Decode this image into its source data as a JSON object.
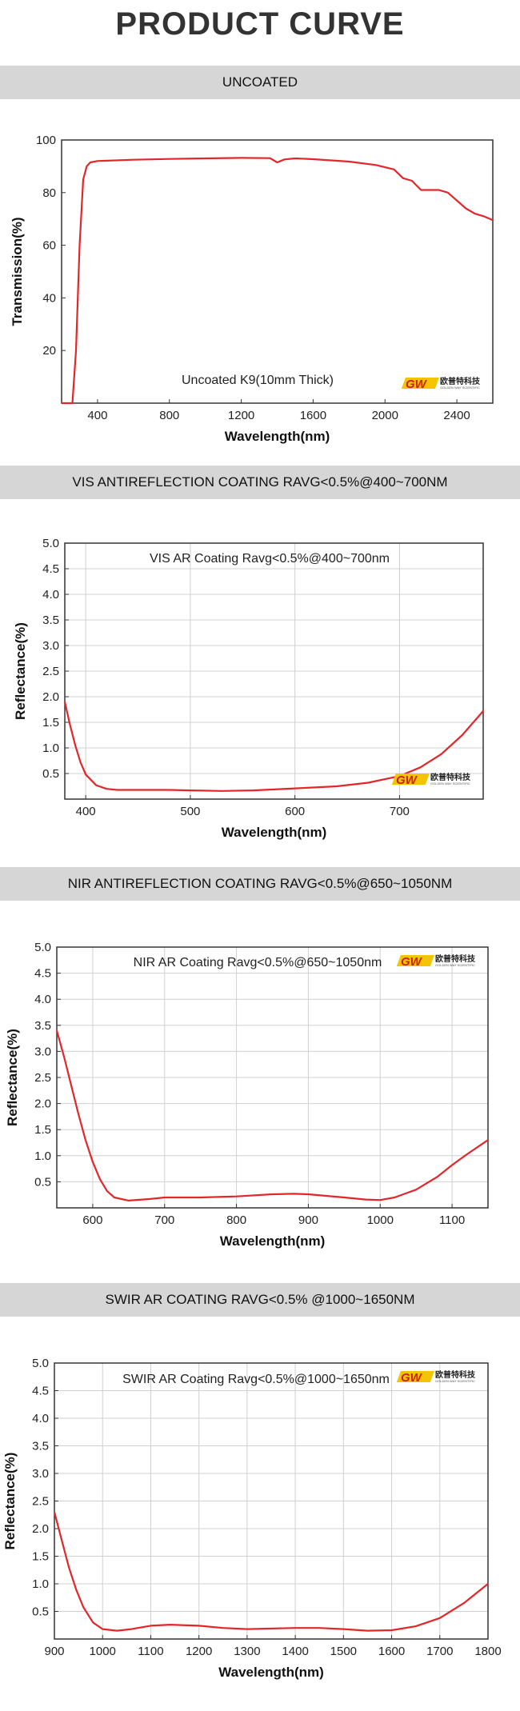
{
  "page": {
    "title": "PRODUCT CURVE"
  },
  "logo": {
    "mark": "GW",
    "chinese": "欧普特科技",
    "sub": "GOLDEN WAY SCIENTIFIC",
    "mark_color": "#cc1f1f",
    "bar_color": "#f5c400"
  },
  "colors": {
    "curve": "#e3262a",
    "grid": "#d0d0d0",
    "frame": "#333333",
    "bar": "#d6d6d6"
  },
  "sections": [
    {
      "label": "UNCOATED"
    },
    {
      "label": "VIS ANTIREFLECTION COATING RAVG<0.5%@400~700NM"
    },
    {
      "label": "NIR ANTIREFLECTION COATING RAVG<0.5%@650~1050NM"
    },
    {
      "label": "SWIR AR COATING RAVG<0.5% @1000~1650NM"
    }
  ],
  "chart_data": [
    {
      "type": "line",
      "annotation": "Uncoated K9(10mm Thick)",
      "xlabel": "Wavelength(nm)",
      "ylabel": "Transmission(%)",
      "xlim": [
        200,
        2600
      ],
      "ylim": [
        0,
        100
      ],
      "x_ticks": [
        400,
        800,
        1200,
        1600,
        2000,
        2400
      ],
      "y_ticks": [
        20,
        40,
        60,
        80,
        100
      ],
      "grid": false,
      "series": [
        {
          "x": [
            200,
            260,
            280,
            300,
            320,
            340,
            360,
            400,
            600,
            800,
            1000,
            1200,
            1360,
            1400,
            1440,
            1500,
            1600,
            1800,
            1950,
            2050,
            2100,
            2150,
            2200,
            2250,
            2300,
            2350,
            2400,
            2450,
            2500,
            2550,
            2600
          ],
          "y": [
            0,
            0,
            20,
            60,
            85,
            90,
            91.5,
            92,
            92.5,
            92.8,
            93,
            93.2,
            93.1,
            91.5,
            92.6,
            93,
            92.7,
            91.8,
            90.5,
            88.8,
            85.5,
            84.5,
            81,
            81,
            81,
            80,
            77,
            74,
            72,
            71,
            69.5
          ]
        }
      ]
    },
    {
      "type": "line",
      "annotation": "VIS AR Coating Ravg<0.5%@400~700nm",
      "xlabel": "Wavelength(nm)",
      "ylabel": "Reflectance(%)",
      "xlim": [
        380,
        780
      ],
      "ylim": [
        0,
        5
      ],
      "x_ticks": [
        400,
        500,
        600,
        700
      ],
      "y_ticks": [
        0.5,
        1.0,
        1.5,
        2.0,
        2.5,
        3.0,
        3.5,
        4.0,
        4.5,
        5.0
      ],
      "grid": true,
      "series": [
        {
          "x": [
            380,
            385,
            390,
            395,
            400,
            410,
            420,
            430,
            450,
            480,
            500,
            530,
            560,
            600,
            640,
            670,
            700,
            720,
            740,
            760,
            780
          ],
          "y": [
            1.9,
            1.45,
            1.05,
            0.72,
            0.48,
            0.27,
            0.2,
            0.18,
            0.18,
            0.18,
            0.17,
            0.16,
            0.17,
            0.21,
            0.25,
            0.32,
            0.45,
            0.62,
            0.88,
            1.25,
            1.72
          ]
        }
      ]
    },
    {
      "type": "line",
      "annotation": "NIR AR Coating Ravg<0.5%@650~1050nm",
      "xlabel": "Wavelength(nm)",
      "ylabel": "Reflectance(%)",
      "xlim": [
        550,
        1150
      ],
      "ylim": [
        0,
        5
      ],
      "x_ticks": [
        600,
        700,
        800,
        900,
        1000,
        1100
      ],
      "y_ticks": [
        0.5,
        1.0,
        1.5,
        2.0,
        2.5,
        3.0,
        3.5,
        4.0,
        4.5,
        5.0
      ],
      "grid": true,
      "series": [
        {
          "x": [
            550,
            560,
            570,
            580,
            590,
            600,
            610,
            620,
            630,
            650,
            680,
            700,
            750,
            800,
            850,
            880,
            900,
            950,
            980,
            1000,
            1020,
            1050,
            1080,
            1100,
            1120,
            1150
          ],
          "y": [
            3.4,
            2.9,
            2.35,
            1.8,
            1.3,
            0.88,
            0.55,
            0.32,
            0.2,
            0.14,
            0.17,
            0.2,
            0.2,
            0.22,
            0.26,
            0.27,
            0.26,
            0.2,
            0.16,
            0.15,
            0.2,
            0.35,
            0.6,
            0.82,
            1.02,
            1.3
          ]
        }
      ]
    },
    {
      "type": "line",
      "annotation": "SWIR AR Coating Ravg<0.5%@1000~1650nm",
      "xlabel": "Wavelength(nm)",
      "ylabel": "Reflectance(%)",
      "xlim": [
        900,
        1800
      ],
      "ylim": [
        0,
        5
      ],
      "x_ticks": [
        900,
        1000,
        1100,
        1200,
        1300,
        1400,
        1500,
        1600,
        1700,
        1800
      ],
      "y_ticks": [
        0.5,
        1.0,
        1.5,
        2.0,
        2.5,
        3.0,
        3.5,
        4.0,
        4.5,
        5.0
      ],
      "grid": true,
      "series": [
        {
          "x": [
            900,
            915,
            930,
            945,
            960,
            980,
            1000,
            1030,
            1060,
            1100,
            1140,
            1200,
            1250,
            1300,
            1400,
            1450,
            1500,
            1550,
            1600,
            1650,
            1700,
            1750,
            1800
          ],
          "y": [
            2.3,
            1.8,
            1.3,
            0.9,
            0.58,
            0.3,
            0.18,
            0.15,
            0.18,
            0.24,
            0.26,
            0.24,
            0.2,
            0.18,
            0.2,
            0.2,
            0.18,
            0.15,
            0.16,
            0.23,
            0.38,
            0.65,
            1.0
          ]
        }
      ]
    }
  ]
}
